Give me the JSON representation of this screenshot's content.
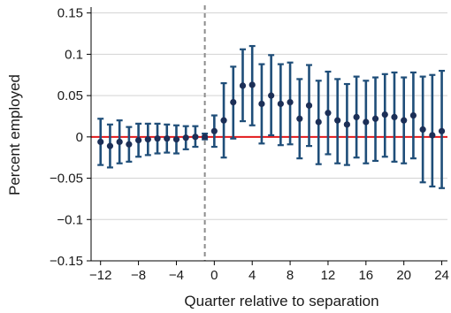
{
  "chart_data": {
    "type": "scatter",
    "title": "",
    "xlabel": "Quarter relative to separation",
    "ylabel": "Percent employed",
    "xlim": [
      -13,
      24.6
    ],
    "ylim": [
      -0.15,
      0.155
    ],
    "xticks": [
      -12,
      -8,
      -4,
      0,
      4,
      8,
      12,
      16,
      20,
      24
    ],
    "xtick_labels": [
      "−12",
      "−8",
      "−4",
      "0",
      "4",
      "8",
      "12",
      "16",
      "20",
      "24"
    ],
    "yticks": [
      -0.15,
      -0.1,
      -0.05,
      0,
      0.05,
      0.1,
      0.15
    ],
    "ytick_labels": [
      "−0.15",
      "−0.1",
      "−0.05",
      "0",
      "0.05",
      "0.1",
      "0.15"
    ],
    "grid": "horizontal",
    "vline_x": -1,
    "hline_y": 0,
    "colors": {
      "points": "#1c2f57",
      "error_bars": "#1f4e79",
      "zero_line": "#e31a1c",
      "vline": "#8c8c8c",
      "grid": "#d3d3d3"
    },
    "series": [
      {
        "x": [
          -12,
          -11,
          -10,
          -9,
          -8,
          -7,
          -6,
          -5,
          -4,
          -3,
          -2,
          -1,
          0,
          1,
          2,
          3,
          4,
          5,
          6,
          7,
          8,
          9,
          10,
          11,
          12,
          13,
          14,
          15,
          16,
          17,
          18,
          19,
          20,
          21,
          22,
          23,
          24
        ],
        "y": [
          -0.006,
          -0.011,
          -0.006,
          -0.009,
          -0.004,
          -0.003,
          -0.002,
          -0.002,
          -0.003,
          -0.001,
          0.0,
          0.0,
          0.007,
          0.02,
          0.042,
          0.062,
          0.063,
          0.04,
          0.05,
          0.04,
          0.042,
          0.022,
          0.038,
          0.018,
          0.029,
          0.02,
          0.015,
          0.024,
          0.018,
          0.022,
          0.027,
          0.024,
          0.02,
          0.026,
          0.009,
          0.002,
          0.007
        ],
        "lower": [
          -0.034,
          -0.037,
          -0.032,
          -0.03,
          -0.024,
          -0.022,
          -0.02,
          -0.019,
          -0.02,
          -0.015,
          -0.012,
          -0.003,
          -0.012,
          -0.025,
          -0.002,
          0.019,
          0.014,
          -0.008,
          0.002,
          -0.01,
          -0.009,
          -0.026,
          -0.011,
          -0.033,
          -0.021,
          -0.032,
          -0.034,
          -0.025,
          -0.032,
          -0.029,
          -0.024,
          -0.03,
          -0.032,
          -0.026,
          -0.055,
          -0.06,
          -0.062
        ],
        "upper": [
          0.022,
          0.015,
          0.02,
          0.012,
          0.016,
          0.016,
          0.016,
          0.015,
          0.014,
          0.013,
          0.013,
          0.004,
          0.026,
          0.065,
          0.085,
          0.106,
          0.11,
          0.088,
          0.099,
          0.088,
          0.09,
          0.07,
          0.087,
          0.068,
          0.079,
          0.07,
          0.064,
          0.073,
          0.068,
          0.072,
          0.076,
          0.078,
          0.072,
          0.078,
          0.073,
          0.075,
          0.08
        ]
      }
    ]
  }
}
